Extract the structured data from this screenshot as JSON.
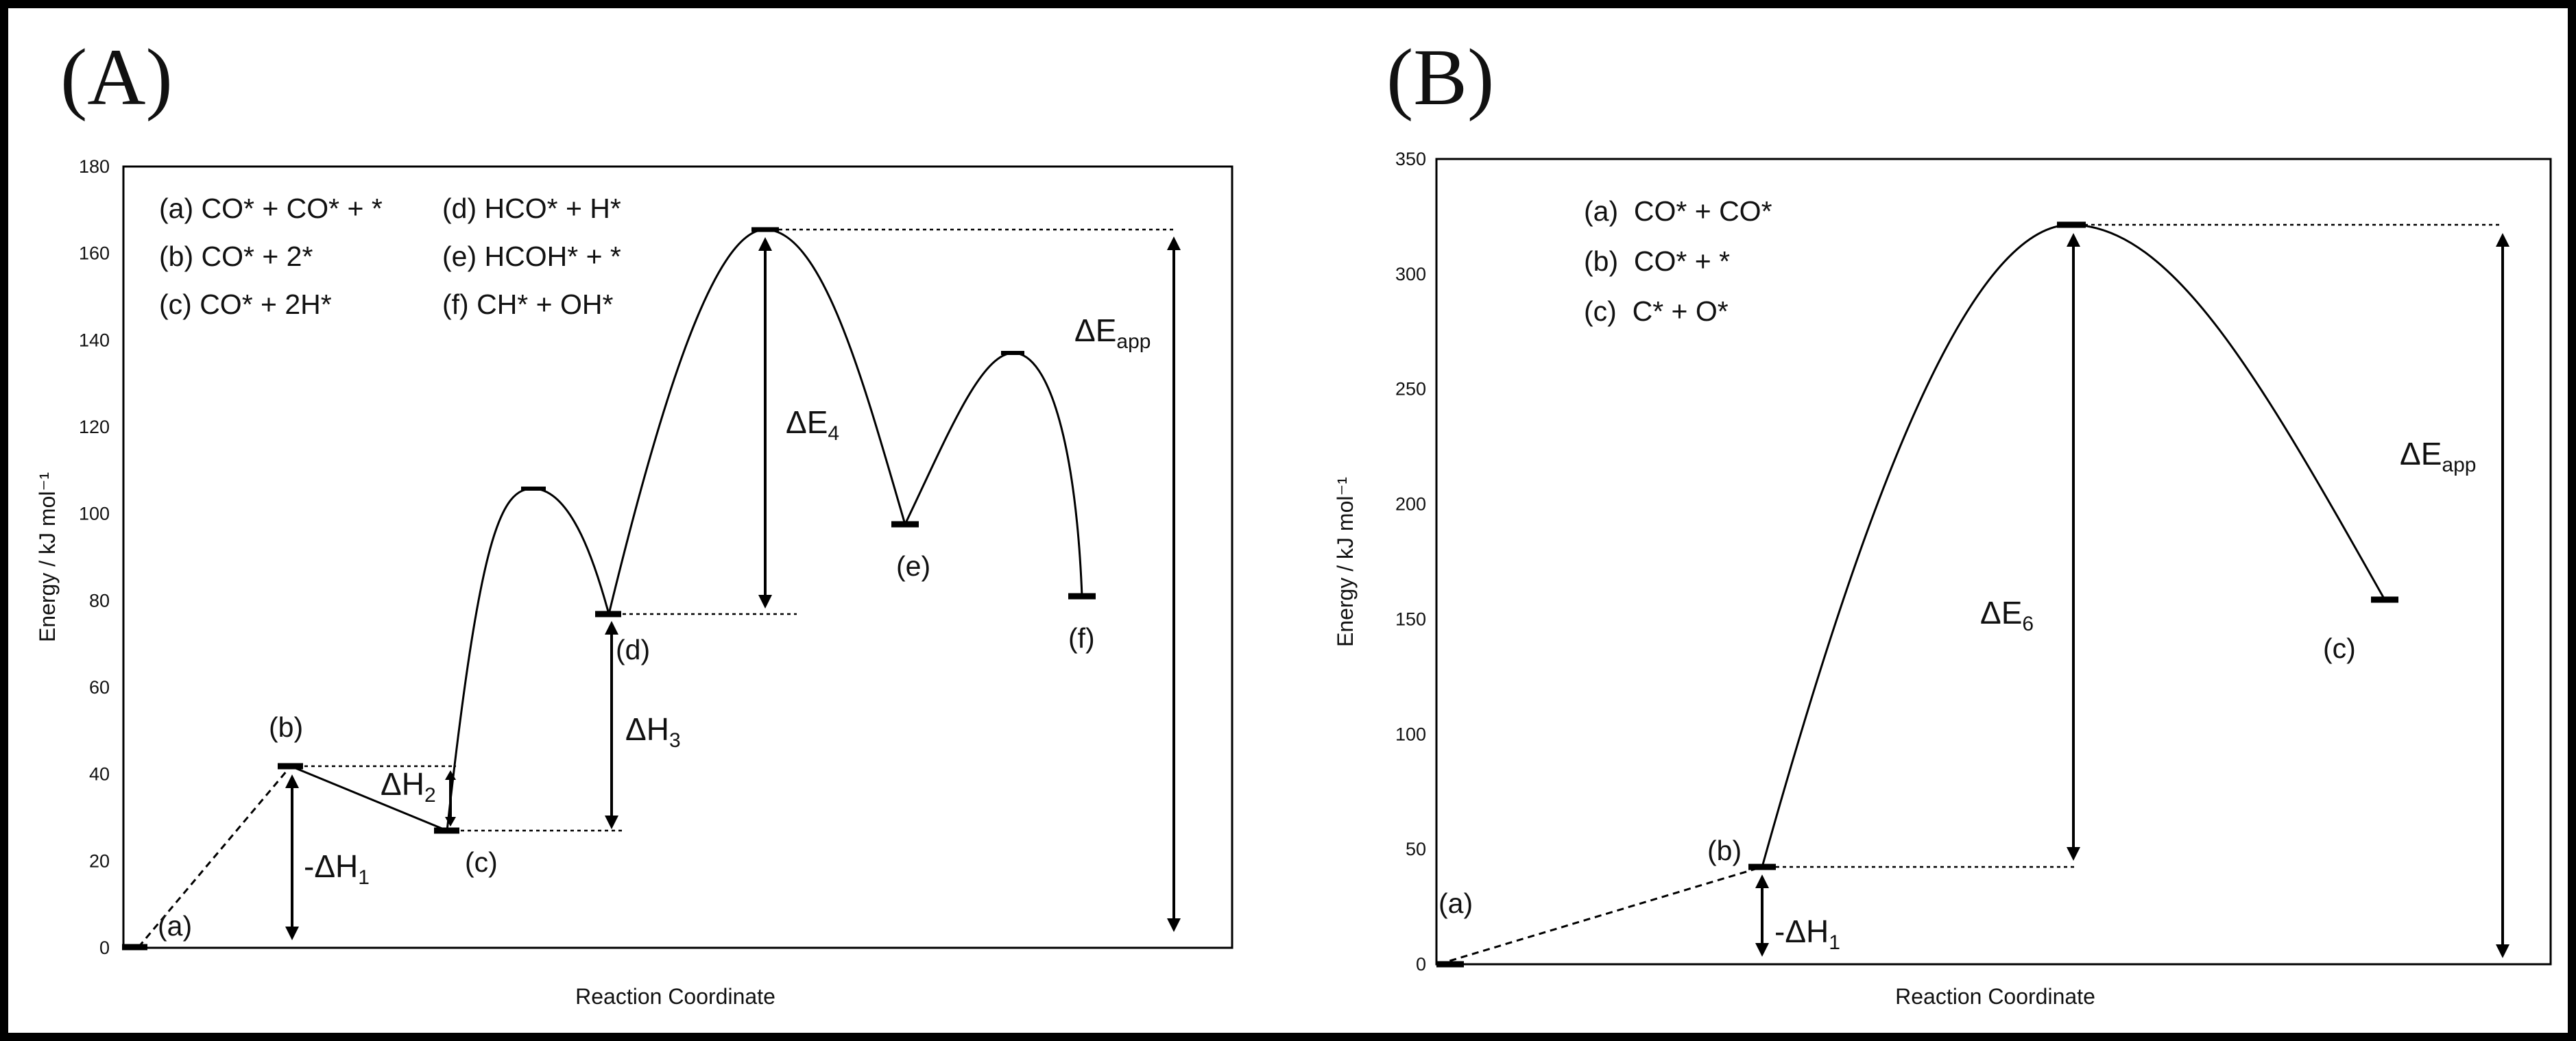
{
  "chart_data": [
    {
      "panel": "(A)",
      "type": "line",
      "ylabel": "Energy / kJ mol⁻¹",
      "xlabel": "Reaction Coordinate",
      "ylim": [
        0,
        180
      ],
      "yticks": [
        "0",
        "20",
        "40",
        "60",
        "80",
        "100",
        "120",
        "140",
        "160",
        "180"
      ],
      "legend": [
        "(a) CO* + CO* + *",
        "(b) CO* + 2*",
        "(c) CO* + 2H*",
        "(d) HCO* + H*",
        "(e) HCOH* + *",
        "(f) CH* + OH*"
      ],
      "states": [
        {
          "label": "(a)",
          "energy": 0
        },
        {
          "label": "(b)",
          "energy": 42
        },
        {
          "label": "(c)",
          "energy": 27
        },
        {
          "label": "",
          "energy": 105
        },
        {
          "label": "(d)",
          "energy": 77
        },
        {
          "label": "",
          "energy": 166
        },
        {
          "label": "(e)",
          "energy": 97
        },
        {
          "label": "",
          "energy": 137
        },
        {
          "label": "(f)",
          "energy": 81
        }
      ],
      "annotations": [
        {
          "text": "-ΔH",
          "sub": "1"
        },
        {
          "text": "ΔH",
          "sub": "2"
        },
        {
          "text": "ΔH",
          "sub": "3"
        },
        {
          "text": "ΔE",
          "sub": "4"
        },
        {
          "text": "ΔE",
          "sub": "app"
        }
      ]
    },
    {
      "panel": "(B)",
      "type": "line",
      "ylabel": "Energy / kJ mol⁻¹",
      "xlabel": "Reaction Coordinate",
      "ylim": [
        0,
        350
      ],
      "yticks": [
        "0",
        "50",
        "100",
        "150",
        "200",
        "250",
        "300",
        "350"
      ],
      "legend": [
        "(a)  CO* + CO*",
        "(b)  CO* + *",
        "(c)  C* + O*"
      ],
      "states": [
        {
          "label": "(a)",
          "energy": 0
        },
        {
          "label": "(b)",
          "energy": 42
        },
        {
          "label": "",
          "energy": 322
        },
        {
          "label": "(c)",
          "energy": 158
        }
      ],
      "annotations": [
        {
          "text": "-ΔH",
          "sub": "1"
        },
        {
          "text": "ΔE",
          "sub": "6"
        },
        {
          "text": "ΔE",
          "sub": "app"
        }
      ]
    }
  ]
}
